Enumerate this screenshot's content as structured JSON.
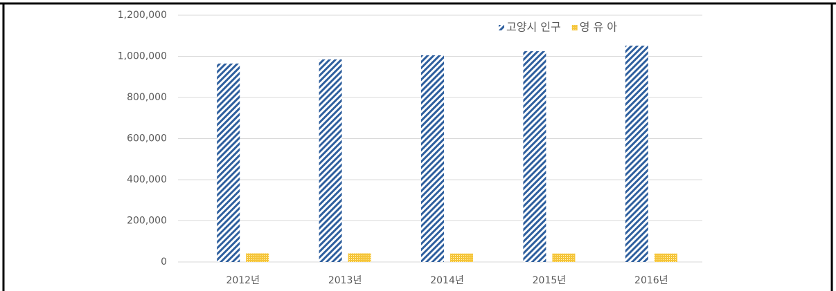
{
  "chart_data": {
    "type": "bar",
    "categories": [
      "2012년",
      "2013년",
      "2014년",
      "2015년",
      "2016년"
    ],
    "series": [
      {
        "name": "고양시 인구",
        "color": "#2e5f9e",
        "pattern": "diagonal",
        "values": [
          965000,
          985000,
          1005000,
          1025000,
          1052000
        ]
      },
      {
        "name": "영 유 아",
        "color": "#f5c53a",
        "pattern": "dotted",
        "values": [
          42000,
          42000,
          41000,
          41000,
          41000
        ]
      }
    ],
    "ylim": [
      0,
      1200000
    ],
    "yticks": [
      0,
      {
        "value": 200000,
        "label": "200,000"
      },
      {
        "value": 400000,
        "label": "400,000"
      },
      {
        "value": 600000,
        "label": "600,000"
      },
      {
        "value": 800000,
        "label": "800,000"
      },
      {
        "value": 1000000,
        "label": "1,000,000"
      },
      {
        "value": 1200000,
        "label": "1,200,000"
      }
    ],
    "grid": true,
    "legend": "top-right"
  }
}
